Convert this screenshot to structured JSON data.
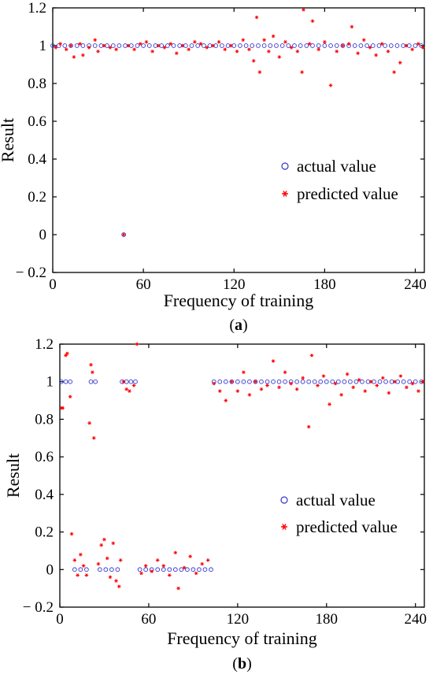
{
  "chart_data": [
    {
      "type": "scatter",
      "caption": "(a)",
      "caption_letter": "a",
      "xlabel": "Frequency of training",
      "ylabel": "Result",
      "xlim": [
        0,
        246
      ],
      "ylim": [
        -0.2,
        1.2
      ],
      "xticks": [
        0,
        60,
        120,
        180,
        240
      ],
      "yticks": [
        -0.2,
        0,
        0.2,
        0.4,
        0.6,
        0.8,
        1,
        1.2
      ],
      "ytick_labels": [
        "− 0.2",
        "0",
        "0.2",
        "0.4",
        "0.6",
        "0.8",
        "1",
        "1.2"
      ],
      "grid": false,
      "legend_position": "center-right",
      "series": [
        {
          "name": "actual value",
          "marker": "circle",
          "color": "#3333cc",
          "points": [
            [
              0,
              1
            ],
            [
              4,
              1
            ],
            [
              8,
              1
            ],
            [
              12,
              1
            ],
            [
              16,
              1
            ],
            [
              20,
              1
            ],
            [
              24,
              1
            ],
            [
              28,
              1
            ],
            [
              32,
              1
            ],
            [
              36,
              1
            ],
            [
              40,
              1
            ],
            [
              44,
              1
            ],
            [
              47,
              0
            ],
            [
              48,
              1
            ],
            [
              52,
              1
            ],
            [
              56,
              1
            ],
            [
              60,
              1
            ],
            [
              64,
              1
            ],
            [
              68,
              1
            ],
            [
              72,
              1
            ],
            [
              76,
              1
            ],
            [
              80,
              1
            ],
            [
              84,
              1
            ],
            [
              88,
              1
            ],
            [
              92,
              1
            ],
            [
              96,
              1
            ],
            [
              100,
              1
            ],
            [
              104,
              1
            ],
            [
              108,
              1
            ],
            [
              112,
              1
            ],
            [
              116,
              1
            ],
            [
              120,
              1
            ],
            [
              124,
              1
            ],
            [
              128,
              1
            ],
            [
              132,
              1
            ],
            [
              136,
              1
            ],
            [
              140,
              1
            ],
            [
              144,
              1
            ],
            [
              148,
              1
            ],
            [
              152,
              1
            ],
            [
              156,
              1
            ],
            [
              160,
              1
            ],
            [
              164,
              1
            ],
            [
              168,
              1
            ],
            [
              172,
              1
            ],
            [
              176,
              1
            ],
            [
              180,
              1
            ],
            [
              184,
              1
            ],
            [
              188,
              1
            ],
            [
              192,
              1
            ],
            [
              196,
              1
            ],
            [
              200,
              1
            ],
            [
              204,
              1
            ],
            [
              208,
              1
            ],
            [
              212,
              1
            ],
            [
              216,
              1
            ],
            [
              220,
              1
            ],
            [
              224,
              1
            ],
            [
              228,
              1
            ],
            [
              232,
              1
            ],
            [
              236,
              1
            ],
            [
              240,
              1
            ],
            [
              244,
              1
            ]
          ]
        },
        {
          "name": "predicted value",
          "marker": "star",
          "color": "#ff0000",
          "points": [
            [
              2,
              0.99
            ],
            [
              5,
              1.01
            ],
            [
              9,
              0.98
            ],
            [
              12,
              1.0
            ],
            [
              14,
              0.94
            ],
            [
              18,
              1.01
            ],
            [
              20,
              0.95
            ],
            [
              24,
              0.99
            ],
            [
              28,
              1.03
            ],
            [
              30,
              0.97
            ],
            [
              34,
              1.0
            ],
            [
              38,
              0.99
            ],
            [
              42,
              0.98
            ],
            [
              47,
              0.0
            ],
            [
              50,
              1.0
            ],
            [
              54,
              0.98
            ],
            [
              58,
              1.01
            ],
            [
              62,
              1.02
            ],
            [
              66,
              0.97
            ],
            [
              70,
              1.0
            ],
            [
              74,
              0.99
            ],
            [
              78,
              1.01
            ],
            [
              82,
              0.96
            ],
            [
              86,
              1.0
            ],
            [
              90,
              0.98
            ],
            [
              94,
              1.02
            ],
            [
              98,
              1.01
            ],
            [
              102,
              0.99
            ],
            [
              106,
              1.0
            ],
            [
              110,
              1.02
            ],
            [
              114,
              0.98
            ],
            [
              118,
              1.0
            ],
            [
              122,
              0.97
            ],
            [
              126,
              1.03
            ],
            [
              130,
              0.98
            ],
            [
              133,
              0.92
            ],
            [
              135,
              1.15
            ],
            [
              137,
              0.86
            ],
            [
              140,
              1.03
            ],
            [
              143,
              0.97
            ],
            [
              146,
              1.05
            ],
            [
              150,
              0.94
            ],
            [
              154,
              1.02
            ],
            [
              158,
              0.99
            ],
            [
              162,
              0.97
            ],
            [
              165,
              0.86
            ],
            [
              166,
              1.19
            ],
            [
              170,
              1.01
            ],
            [
              172,
              1.13
            ],
            [
              176,
              0.98
            ],
            [
              180,
              1.02
            ],
            [
              184,
              0.79
            ],
            [
              188,
              0.97
            ],
            [
              192,
              1.0
            ],
            [
              196,
              1.01
            ],
            [
              198,
              1.1
            ],
            [
              202,
              0.96
            ],
            [
              206,
              1.03
            ],
            [
              210,
              0.99
            ],
            [
              214,
              0.95
            ],
            [
              218,
              1.01
            ],
            [
              222,
              0.97
            ],
            [
              226,
              0.86
            ],
            [
              230,
              0.91
            ],
            [
              234,
              1.0
            ],
            [
              238,
              0.98
            ],
            [
              242,
              1.01
            ],
            [
              245,
              0.99
            ]
          ]
        }
      ]
    },
    {
      "type": "scatter",
      "caption": "(b)",
      "caption_letter": "b",
      "xlabel": "Frequency of training",
      "ylabel": "Result",
      "xlim": [
        0,
        246
      ],
      "ylim": [
        -0.2,
        1.2
      ],
      "xticks": [
        0,
        60,
        120,
        180,
        240
      ],
      "yticks": [
        -0.2,
        0,
        0.2,
        0.4,
        0.6,
        0.8,
        1,
        1.2
      ],
      "ytick_labels": [
        "− 0.2",
        "0",
        "0.2",
        "0.4",
        "0.6",
        "0.8",
        "1",
        "1.2"
      ],
      "grid": false,
      "legend_position": "center-right",
      "series": [
        {
          "name": "actual value",
          "marker": "circle",
          "color": "#3333cc",
          "points": [
            [
              1,
              1
            ],
            [
              4,
              1
            ],
            [
              7,
              1
            ],
            [
              10,
              0
            ],
            [
              14,
              0
            ],
            [
              18,
              0
            ],
            [
              21,
              1
            ],
            [
              24,
              1
            ],
            [
              27,
              0
            ],
            [
              31,
              0
            ],
            [
              35,
              0
            ],
            [
              39,
              0
            ],
            [
              42,
              1
            ],
            [
              45,
              1
            ],
            [
              48,
              1
            ],
            [
              51,
              1
            ],
            [
              54,
              0
            ],
            [
              58,
              0
            ],
            [
              62,
              0
            ],
            [
              66,
              0
            ],
            [
              70,
              0
            ],
            [
              74,
              0
            ],
            [
              78,
              0
            ],
            [
              82,
              0
            ],
            [
              86,
              0
            ],
            [
              90,
              0
            ],
            [
              94,
              0
            ],
            [
              98,
              0
            ],
            [
              102,
              0
            ],
            [
              104,
              1
            ],
            [
              108,
              1
            ],
            [
              112,
              1
            ],
            [
              116,
              1
            ],
            [
              120,
              1
            ],
            [
              124,
              1
            ],
            [
              128,
              1
            ],
            [
              132,
              1
            ],
            [
              136,
              1
            ],
            [
              140,
              1
            ],
            [
              144,
              1
            ],
            [
              148,
              1
            ],
            [
              152,
              1
            ],
            [
              156,
              1
            ],
            [
              160,
              1
            ],
            [
              164,
              1
            ],
            [
              168,
              1
            ],
            [
              172,
              1
            ],
            [
              176,
              1
            ],
            [
              180,
              1
            ],
            [
              184,
              1
            ],
            [
              188,
              1
            ],
            [
              192,
              1
            ],
            [
              196,
              1
            ],
            [
              200,
              1
            ],
            [
              204,
              1
            ],
            [
              208,
              1
            ],
            [
              212,
              1
            ],
            [
              216,
              1
            ],
            [
              220,
              1
            ],
            [
              224,
              1
            ],
            [
              228,
              1
            ],
            [
              232,
              1
            ],
            [
              236,
              1
            ],
            [
              240,
              1
            ],
            [
              244,
              1
            ]
          ]
        },
        {
          "name": "predicted value",
          "marker": "star",
          "color": "#ff0000",
          "points": [
            [
              1,
              0.86
            ],
            [
              2,
              0.86
            ],
            [
              4,
              1.14
            ],
            [
              5,
              1.15
            ],
            [
              7,
              0.92
            ],
            [
              8,
              0.19
            ],
            [
              10,
              0.05
            ],
            [
              12,
              -0.03
            ],
            [
              14,
              0.08
            ],
            [
              16,
              0.02
            ],
            [
              18,
              -0.03
            ],
            [
              20,
              0.78
            ],
            [
              21,
              1.09
            ],
            [
              22,
              1.05
            ],
            [
              23,
              0.7
            ],
            [
              26,
              0.03
            ],
            [
              28,
              0.13
            ],
            [
              30,
              0.16
            ],
            [
              32,
              0.06
            ],
            [
              34,
              -0.04
            ],
            [
              36,
              0.14
            ],
            [
              38,
              -0.06
            ],
            [
              40,
              -0.09
            ],
            [
              41,
              0.05
            ],
            [
              43,
              1.0
            ],
            [
              45,
              0.96
            ],
            [
              47,
              0.95
            ],
            [
              50,
              0.98
            ],
            [
              52,
              1.2
            ],
            [
              55,
              -0.02
            ],
            [
              58,
              0.02
            ],
            [
              62,
              -0.01
            ],
            [
              66,
              0.05
            ],
            [
              70,
              0.02
            ],
            [
              74,
              -0.03
            ],
            [
              78,
              0.09
            ],
            [
              80,
              -0.1
            ],
            [
              84,
              0.01
            ],
            [
              88,
              0.07
            ],
            [
              92,
              -0.02
            ],
            [
              96,
              0.03
            ],
            [
              100,
              0.05
            ],
            [
              104,
              0.99
            ],
            [
              108,
              0.95
            ],
            [
              112,
              0.9
            ],
            [
              116,
              1.0
            ],
            [
              120,
              0.95
            ],
            [
              124,
              1.05
            ],
            [
              128,
              0.93
            ],
            [
              132,
              1.0
            ],
            [
              136,
              0.96
            ],
            [
              140,
              0.98
            ],
            [
              144,
              1.11
            ],
            [
              148,
              0.97
            ],
            [
              152,
              1.05
            ],
            [
              156,
              0.99
            ],
            [
              160,
              0.96
            ],
            [
              164,
              1.02
            ],
            [
              168,
              0.76
            ],
            [
              170,
              1.14
            ],
            [
              174,
              0.98
            ],
            [
              178,
              1.03
            ],
            [
              182,
              0.88
            ],
            [
              186,
              0.99
            ],
            [
              190,
              0.93
            ],
            [
              194,
              1.04
            ],
            [
              198,
              0.97
            ],
            [
              202,
              1.01
            ],
            [
              206,
              0.95
            ],
            [
              210,
              1.0
            ],
            [
              214,
              0.98
            ],
            [
              218,
              1.02
            ],
            [
              222,
              0.94
            ],
            [
              226,
              1.0
            ],
            [
              230,
              1.03
            ],
            [
              234,
              0.97
            ],
            [
              238,
              0.99
            ],
            [
              242,
              0.95
            ],
            [
              245,
              1.0
            ]
          ]
        }
      ]
    }
  ]
}
